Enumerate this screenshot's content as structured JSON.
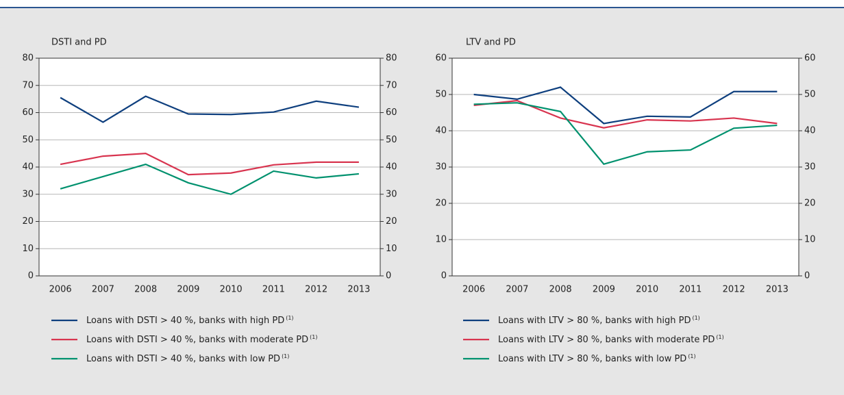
{
  "chart_data": [
    {
      "type": "line",
      "title": "DSTI and PD",
      "categories": [
        "2006",
        "2007",
        "2008",
        "2009",
        "2010",
        "2011",
        "2012",
        "2013"
      ],
      "ylim": [
        0,
        80
      ],
      "yticks": [
        0,
        10,
        20,
        30,
        40,
        50,
        60,
        70,
        80
      ],
      "y2lim": [
        0,
        80
      ],
      "y2ticks": [
        0,
        10,
        20,
        30,
        40,
        50,
        60,
        70,
        80
      ],
      "grid": true,
      "series": [
        {
          "name": "Loans with DSTI > 40 %, banks with high PD",
          "footnote": "(1)",
          "color": "#0e3f7e",
          "values": [
            65.5,
            56.5,
            66,
            59.5,
            59.3,
            60.2,
            64.2,
            62
          ]
        },
        {
          "name": "Loans with DSTI > 40 %, banks with moderate PD",
          "footnote": "(1)",
          "color": "#d8344f",
          "values": [
            41,
            44,
            45,
            37.2,
            37.8,
            40.8,
            41.8,
            41.8
          ]
        },
        {
          "name": "Loans with DSTI > 40 %, banks with low PD",
          "footnote": "(1)",
          "color": "#00916e",
          "values": [
            32,
            36.5,
            41,
            34.2,
            30,
            38.5,
            36,
            37.5
          ]
        }
      ]
    },
    {
      "type": "line",
      "title": "LTV and PD",
      "categories": [
        "2006",
        "2007",
        "2008",
        "2009",
        "2010",
        "2011",
        "2012",
        "2013"
      ],
      "ylim": [
        0,
        60
      ],
      "yticks": [
        0,
        10,
        20,
        30,
        40,
        50,
        60
      ],
      "y2lim": [
        0,
        60
      ],
      "y2ticks": [
        0,
        10,
        20,
        30,
        40,
        50,
        60
      ],
      "grid": true,
      "series": [
        {
          "name": "Loans with LTV > 80 %, banks with high PD",
          "footnote": "(1)",
          "color": "#0e3f7e",
          "values": [
            50,
            48.7,
            52,
            42,
            44,
            43.8,
            50.8,
            50.8
          ]
        },
        {
          "name": "Loans with LTV > 80 %, banks with moderate PD",
          "footnote": "(1)",
          "color": "#d8344f",
          "values": [
            47,
            48.3,
            43.5,
            40.8,
            43,
            42.7,
            43.5,
            42
          ]
        },
        {
          "name": "Loans with LTV > 80 %, banks with low PD",
          "footnote": "(1)",
          "color": "#00916e",
          "values": [
            47.3,
            47.7,
            45.3,
            30.8,
            34.2,
            34.7,
            40.7,
            41.5
          ]
        }
      ]
    }
  ]
}
